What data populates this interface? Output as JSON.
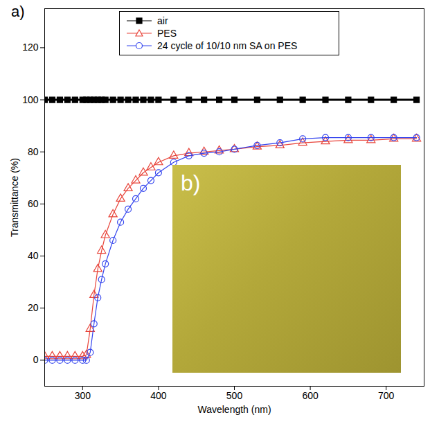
{
  "chart_data": {
    "type": "line",
    "panel_label": "a)",
    "inset_label": "b)",
    "x_label": "Wavelength (nm)",
    "y_label": "Transmittance (%)",
    "x": [
      250,
      260,
      270,
      280,
      290,
      300,
      305,
      310,
      315,
      320,
      325,
      330,
      340,
      350,
      360,
      370,
      380,
      390,
      400,
      420,
      440,
      460,
      480,
      500,
      530,
      560,
      590,
      620,
      650,
      680,
      710,
      740
    ],
    "series": [
      {
        "name": "air",
        "color": "#000000",
        "marker": "square",
        "line_style": "solid",
        "values": [
          100,
          100,
          100,
          100,
          100,
          100,
          100,
          100,
          100,
          100,
          100,
          100,
          100,
          100,
          100,
          100,
          100,
          100,
          100,
          100,
          100,
          100,
          100,
          100,
          100,
          100,
          100,
          100,
          100,
          100,
          100,
          100
        ]
      },
      {
        "name": "PES",
        "color": "#e8443a",
        "marker": "triangle-open",
        "line_style": "solid",
        "values": [
          1.5,
          1.5,
          1.5,
          1.5,
          1.5,
          1.5,
          2,
          12,
          25,
          35,
          42,
          48,
          56,
          62,
          66,
          69,
          72,
          74,
          76,
          78.5,
          79.5,
          80,
          80.5,
          81,
          82,
          82.5,
          83.5,
          84,
          84.5,
          84.5,
          85,
          85
        ]
      },
      {
        "name": "24 cycle of 10/10 nm SA on PES",
        "color": "#3344ee",
        "marker": "circle-open",
        "line_style": "solid",
        "values": [
          0,
          0,
          0,
          0,
          0,
          0,
          0,
          3,
          14,
          24,
          31,
          37,
          46,
          53,
          58,
          62,
          66,
          69,
          72,
          76,
          78.5,
          79.5,
          80,
          81,
          82.5,
          83.5,
          85,
          85.5,
          85.5,
          85.5,
          85.5,
          85.5
        ]
      }
    ],
    "xlim": [
      250,
      750
    ],
    "xticks": [
      300,
      400,
      500,
      600,
      700
    ],
    "ylim": [
      -10,
      135
    ],
    "yticks": [
      0,
      20,
      40,
      60,
      80,
      100,
      120
    ],
    "grid": false,
    "legend": "top"
  }
}
